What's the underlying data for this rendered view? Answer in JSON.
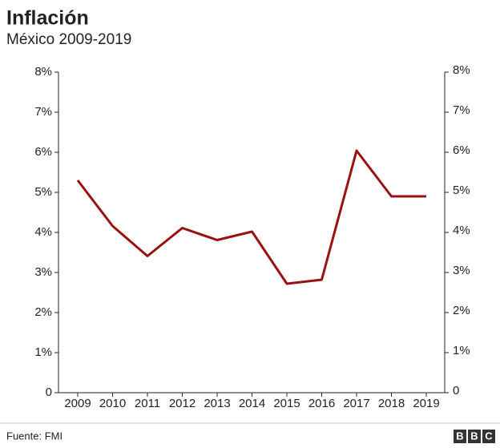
{
  "chart_data": {
    "type": "line",
    "title": "Inflación",
    "subtitle": "México 2009-2019",
    "categories": [
      "2009",
      "2010",
      "2011",
      "2012",
      "2013",
      "2014",
      "2015",
      "2016",
      "2017",
      "2018",
      "2019"
    ],
    "series": [
      {
        "name": "Inflación",
        "color": "#9b1010",
        "values": [
          5.3,
          4.16,
          3.41,
          4.11,
          3.81,
          4.02,
          2.72,
          2.82,
          6.04,
          4.9,
          4.9
        ]
      }
    ],
    "ylim": [
      0,
      8
    ],
    "yticks": [
      0,
      {
        "value": 1,
        "label": "1%"
      },
      {
        "value": 2,
        "label": "2%"
      },
      {
        "value": 3,
        "label": "3%"
      },
      {
        "value": 4,
        "label": "4%"
      },
      {
        "value": 5,
        "label": "5%"
      },
      {
        "value": 6,
        "label": "6%"
      },
      {
        "value": 7,
        "label": "7%"
      },
      {
        "value": 8,
        "label": "8%"
      }
    ],
    "y2lim": [
      0,
      8
    ],
    "y2ticks": [
      0,
      {
        "value": 1,
        "label": "1%"
      },
      {
        "value": 2,
        "label": "2%"
      },
      {
        "value": 3,
        "label": "3%"
      },
      {
        "value": 4,
        "label": "4%"
      },
      {
        "value": 5,
        "label": "5%"
      },
      {
        "value": 6,
        "label": "6%"
      },
      {
        "value": 7,
        "label": "7%"
      },
      {
        "value": 8,
        "label": "8%"
      }
    ],
    "source": "Fuente: FMI",
    "logo": [
      "B",
      "B",
      "C"
    ]
  }
}
